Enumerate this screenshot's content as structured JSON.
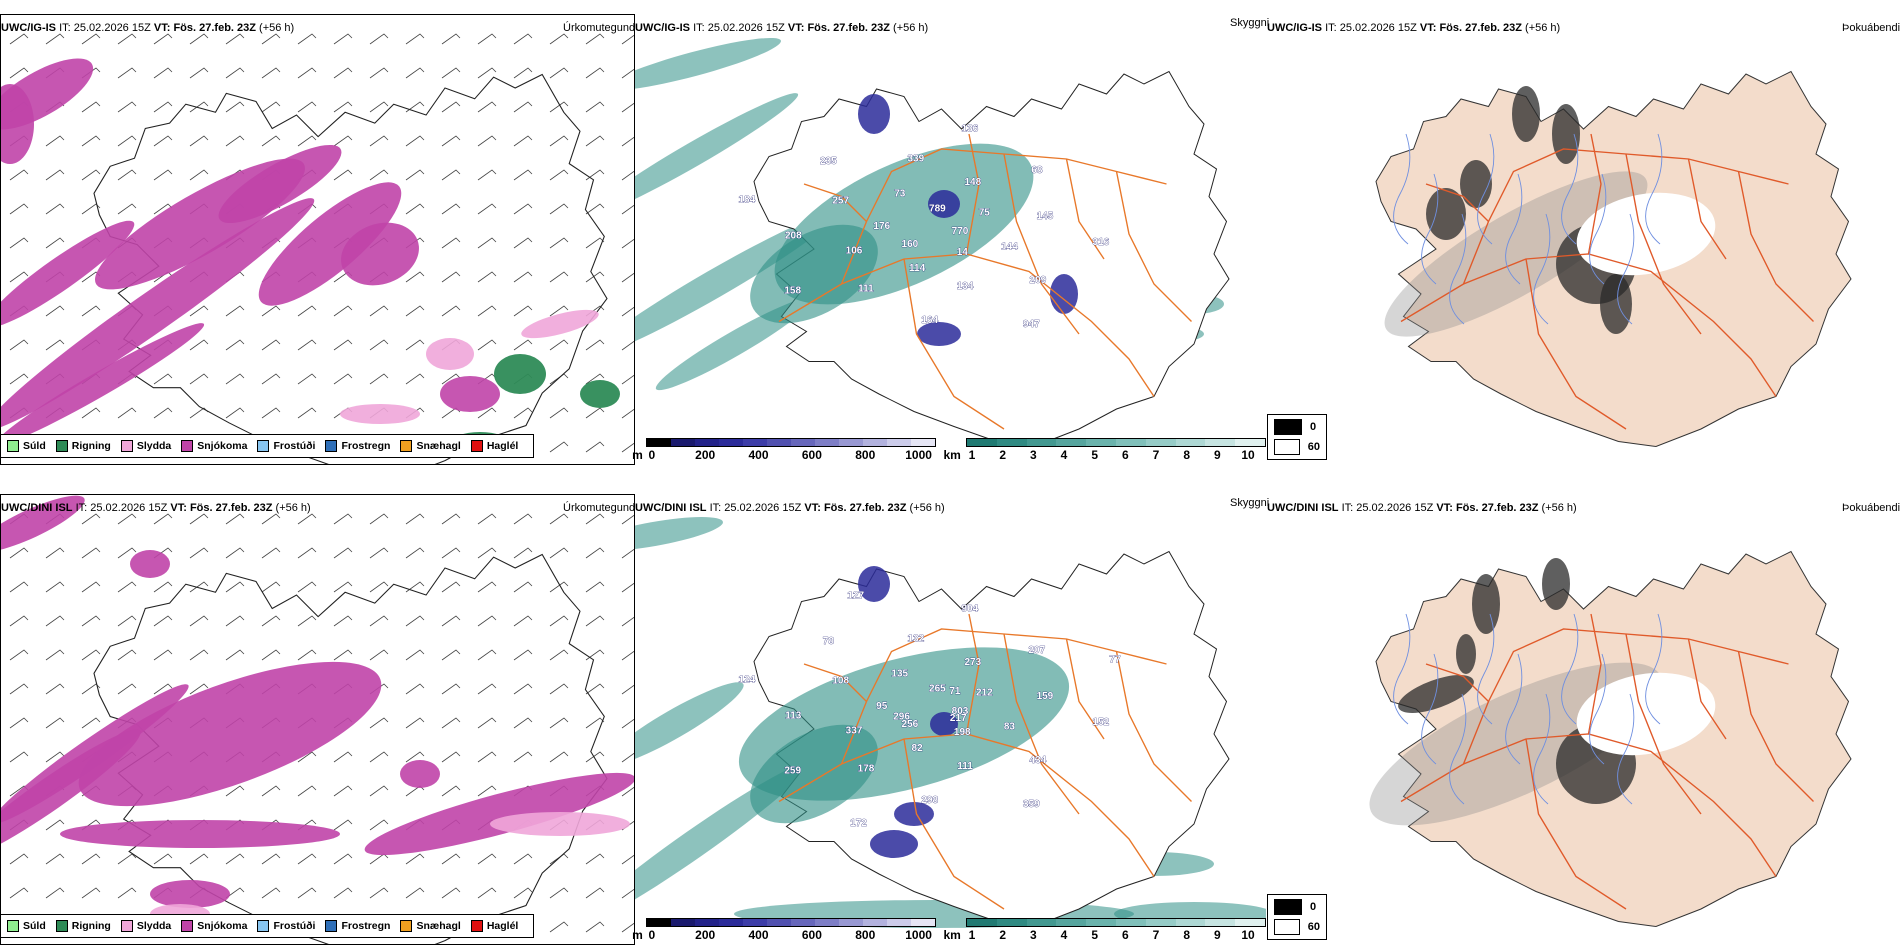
{
  "panels": {
    "row1": {
      "precip": {
        "model": "UWC/IG-IS",
        "it_label": "IT:",
        "it": "25.02.2026 15Z",
        "vt_label": "VT:",
        "vt": "Fös. 27.feb. 23Z",
        "lead": "(+56 h)",
        "title": "Úrkomutegund"
      },
      "cloudbase": {
        "model": "UWC/IG-IS",
        "it_label": "IT:",
        "it": "25.02.2026 15Z",
        "vt_label": "VT:",
        "vt": "Fös. 27.feb. 23Z",
        "lead": "(+56 h)",
        "title": "Skyggni",
        "labels": [
          "770",
          "160",
          "789",
          "14",
          "176",
          "75",
          "114",
          "73",
          "144",
          "106",
          "148",
          "134",
          "257",
          "145",
          "111",
          "339",
          "209",
          "208",
          "68",
          "164",
          "235",
          "316",
          "158",
          "136",
          "947",
          "184"
        ]
      },
      "fog": {
        "model": "UWC/IG-IS",
        "it_label": "IT:",
        "it": "25.02.2026 15Z",
        "vt_label": "VT:",
        "vt": "Fös. 27.feb. 23Z",
        "lead": "(+56 h)",
        "title": "Þokuábendi"
      }
    },
    "row2": {
      "precip": {
        "model": "UWC/DINI ISL",
        "it_label": "IT:",
        "it": "25.02.2026 15Z",
        "vt_label": "VT:",
        "vt": "Fös. 27.feb. 23Z",
        "lead": "(+56 h)",
        "title": "Úrkomutegund"
      },
      "cloudbase": {
        "model": "UWC/DINI ISL",
        "it_label": "IT:",
        "it": "25.02.2026 15Z",
        "vt_label": "VT:",
        "vt": "Fös. 27.feb. 23Z",
        "lead": "(+56 h)",
        "title": "Skyggni",
        "labels": [
          "803",
          "256",
          "265",
          "198",
          "95",
          "212",
          "82",
          "135",
          "83",
          "337",
          "273",
          "111",
          "108",
          "159",
          "178",
          "132",
          "434",
          "113",
          "207",
          "298",
          "78",
          "152",
          "259",
          "904",
          "359",
          "124",
          "77",
          "172",
          "127",
          "217",
          "296",
          "71"
        ]
      },
      "fog": {
        "model": "UWC/DINI ISL",
        "it_label": "IT:",
        "it": "25.02.2026 15Z",
        "vt_label": "VT:",
        "vt": "Fös. 27.feb. 23Z",
        "lead": "(+56 h)",
        "title": "Þokuábendi"
      }
    }
  },
  "precip_legend": [
    {
      "label": "Súld",
      "color": "#90ee90"
    },
    {
      "label": "Rigning",
      "color": "#2e8b57"
    },
    {
      "label": "Slydda",
      "color": "#f0a6d9"
    },
    {
      "label": "Snjókoma",
      "color": "#c044a8"
    },
    {
      "label": "Frostúði",
      "color": "#87c5f0"
    },
    {
      "label": "Frostregn",
      "color": "#2f6fb8"
    },
    {
      "label": "Snæhagl",
      "color": "#f0a020"
    },
    {
      "label": "Haglél",
      "color": "#e01010"
    }
  ],
  "cloudbase_bar": {
    "unit": "m",
    "ticks": [
      "0",
      "200",
      "400",
      "600",
      "800",
      "1000"
    ],
    "colors": [
      "#000000",
      "#1a1a6e",
      "#23238a",
      "#2c2c9a",
      "#3d3da8",
      "#5151b0",
      "#6767bb",
      "#7e7ec6",
      "#9898d2",
      "#b2b2de",
      "#ccccea",
      "#e6e6f5"
    ]
  },
  "visibility_bar": {
    "unit": "km",
    "ticks": [
      "1",
      "2",
      "3",
      "4",
      "5",
      "6",
      "7",
      "8",
      "9",
      "10"
    ],
    "colors": [
      "#1f7a72",
      "#2f8a82",
      "#429890",
      "#56a59e",
      "#6ab3ac",
      "#80c0ba",
      "#96ccc7",
      "#aed8d4",
      "#c6e4e1",
      "#e0f1ef"
    ]
  },
  "fog_legend": [
    {
      "label": "0",
      "color": "#000000"
    },
    {
      "label": "60",
      "color": "#ffffff"
    }
  ],
  "colors": {
    "snow": "#c044a8",
    "sleet": "#f0a6d9",
    "rain": "#2e8b57",
    "visibility": "#2f8f86",
    "cloudbase": "#2c2c9a",
    "roads": "#e8782a",
    "land": "#f3dccb",
    "rivers": "#6f8fe0"
  }
}
